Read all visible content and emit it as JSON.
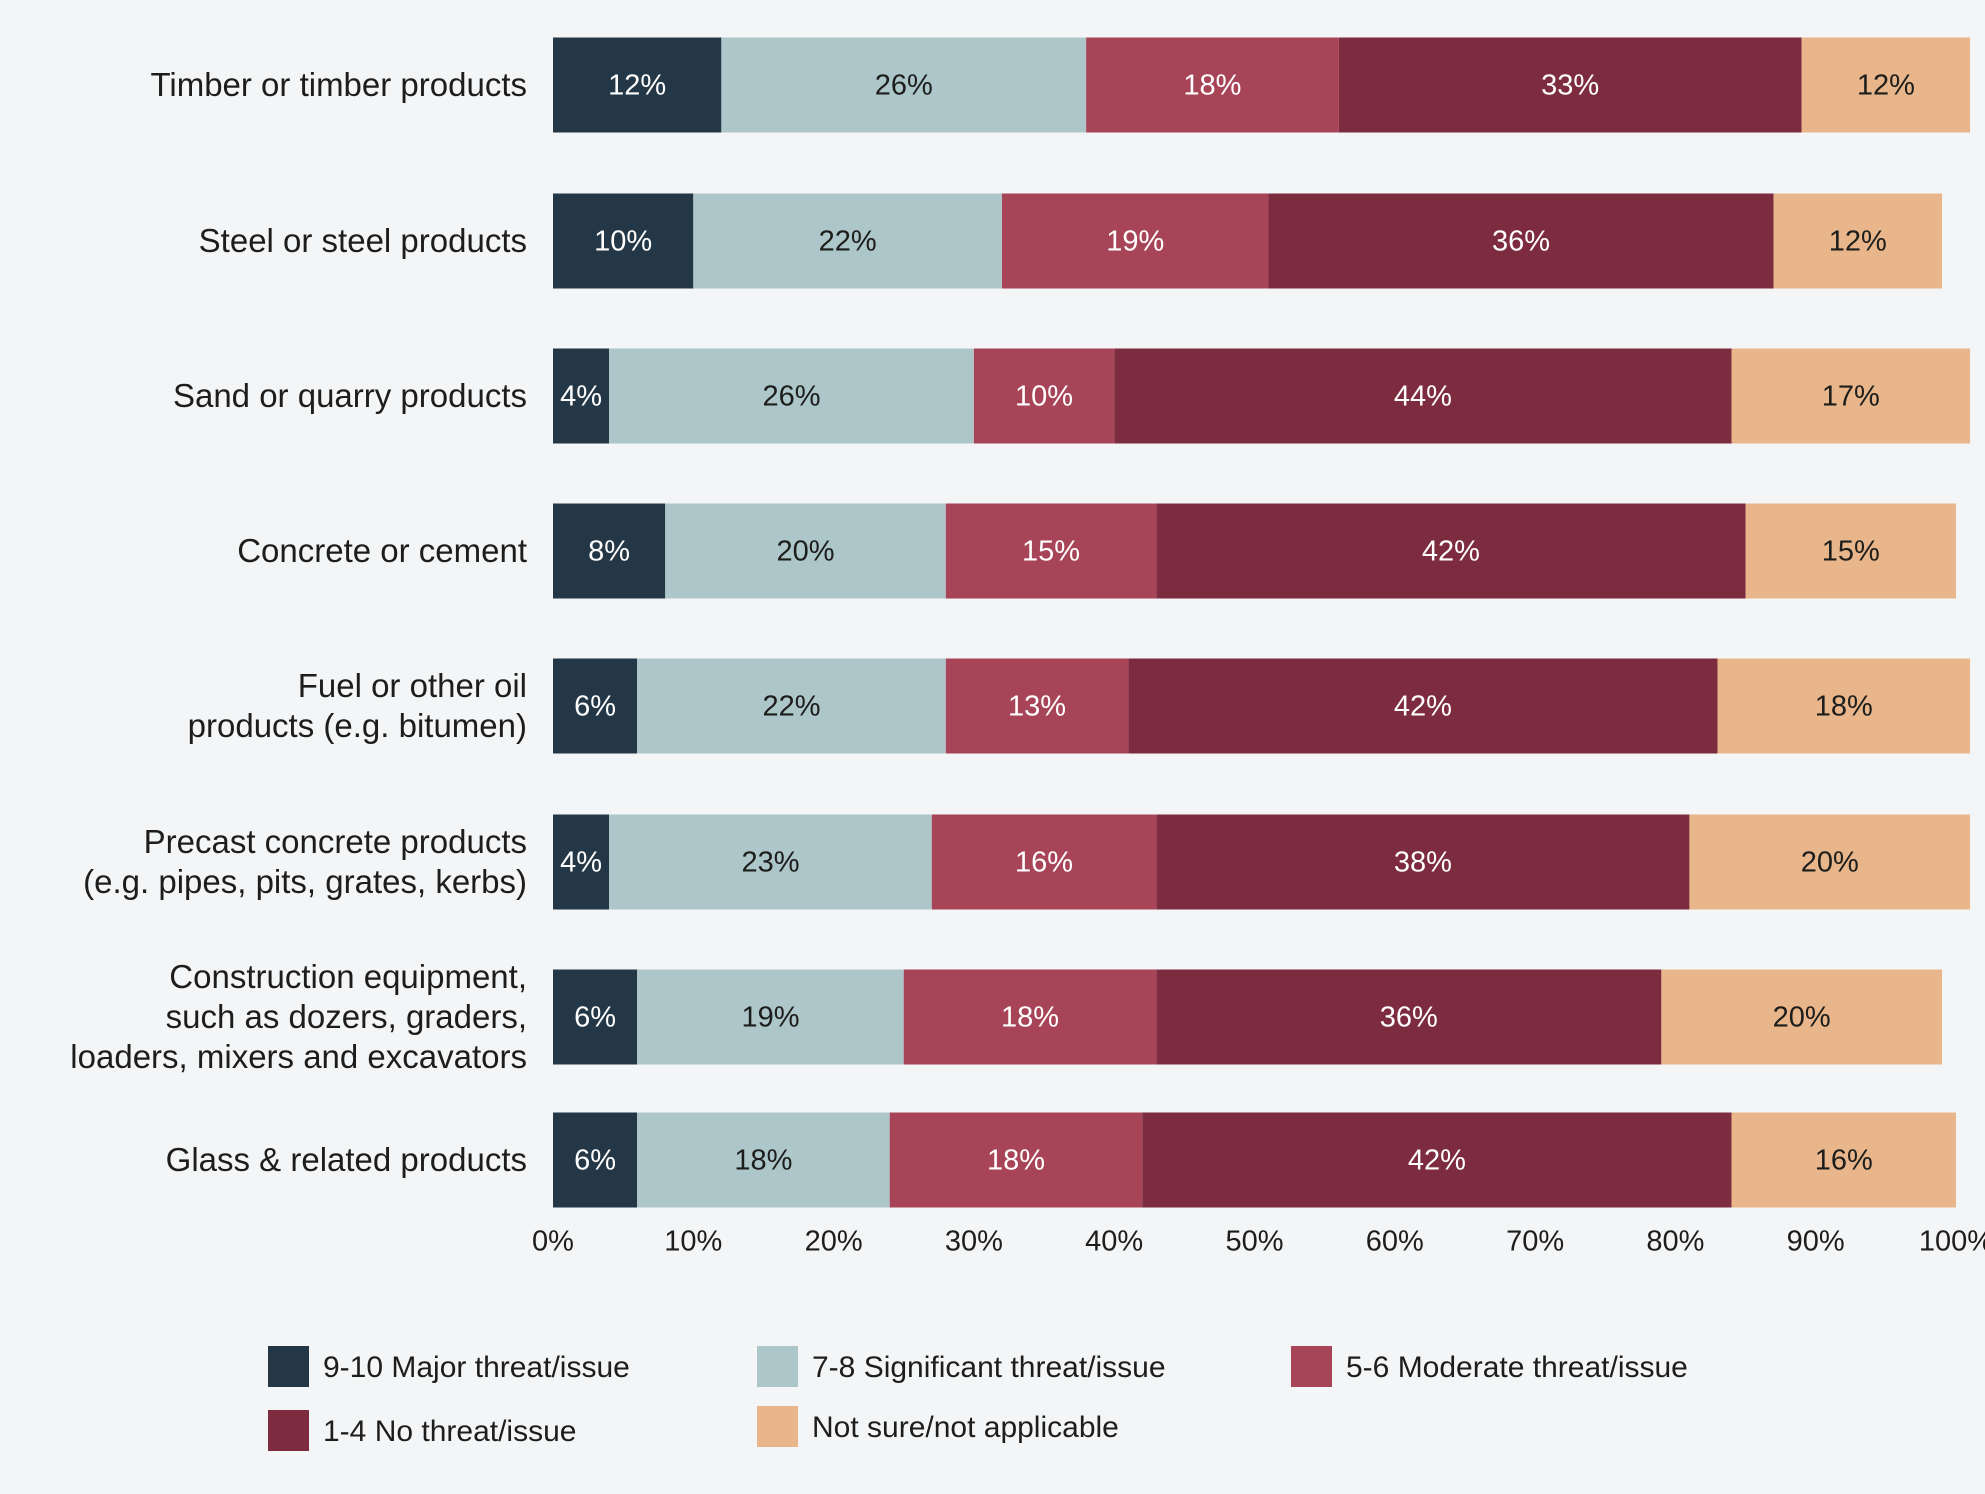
{
  "chart_data": {
    "type": "stacked-bar-horizontal",
    "categories": [
      "Timber or timber products",
      "Steel or steel products",
      "Sand or quarry products",
      "Concrete or cement",
      "Fuel or other oil\nproducts (e.g. bitumen)",
      "Precast concrete products\n(e.g. pipes, pits, grates, kerbs)",
      "Construction equipment,\nsuch as dozers, graders,\nloaders, mixers and excavators",
      "Glass & related products"
    ],
    "series": [
      {
        "name": "9-10 Major threat/issue",
        "color": "#243746",
        "values": [
          12,
          10,
          4,
          8,
          6,
          4,
          6,
          6
        ],
        "value_labels": [
          "12%",
          "10%",
          "4%",
          "8%",
          "6%",
          "4%",
          "6%",
          "6%"
        ]
      },
      {
        "name": "7-8 Significant threat/issue",
        "color": "#adc6c9",
        "values": [
          26,
          22,
          26,
          20,
          22,
          23,
          19,
          18
        ],
        "value_labels": [
          "26%",
          "22%",
          "26%",
          "20%",
          "22%",
          "23%",
          "19%",
          "18%"
        ]
      },
      {
        "name": "5-6 Moderate threat/issue",
        "color": "#a84458",
        "values": [
          18,
          19,
          10,
          15,
          13,
          16,
          18,
          18
        ],
        "value_labels": [
          "18%",
          "19%",
          "10%",
          "15%",
          "13%",
          "16%",
          "18%",
          "18%"
        ]
      },
      {
        "name": "1-4 No threat/issue",
        "color": "#7d2b3f",
        "values": [
          33,
          36,
          44,
          42,
          42,
          38,
          36,
          42
        ],
        "value_labels": [
          "33%",
          "36%",
          "44%",
          "42%",
          "42%",
          "38%",
          "36%",
          "42%"
        ]
      },
      {
        "name": "Not sure/not applicable",
        "color": "#e8b68a",
        "values": [
          12,
          12,
          17,
          15,
          18,
          20,
          20,
          16
        ],
        "value_labels": [
          "12%",
          "12%",
          "17%",
          "15%",
          "18%",
          "20%",
          "20%",
          "16%"
        ]
      }
    ],
    "xlim": [
      0,
      100
    ],
    "xticks": [
      {
        "value": 0,
        "label": "0%"
      },
      {
        "value": 10,
        "label": "10%"
      },
      {
        "value": 20,
        "label": "20%"
      },
      {
        "value": 30,
        "label": "30%"
      },
      {
        "value": 40,
        "label": "40%"
      },
      {
        "value": 50,
        "label": "50%"
      },
      {
        "value": 60,
        "label": "60%"
      },
      {
        "value": 70,
        "label": "70%"
      },
      {
        "value": 80,
        "label": "80%"
      },
      {
        "value": 90,
        "label": "90%"
      },
      {
        "value": 100,
        "label": "100%"
      }
    ],
    "legend": "bottom"
  }
}
